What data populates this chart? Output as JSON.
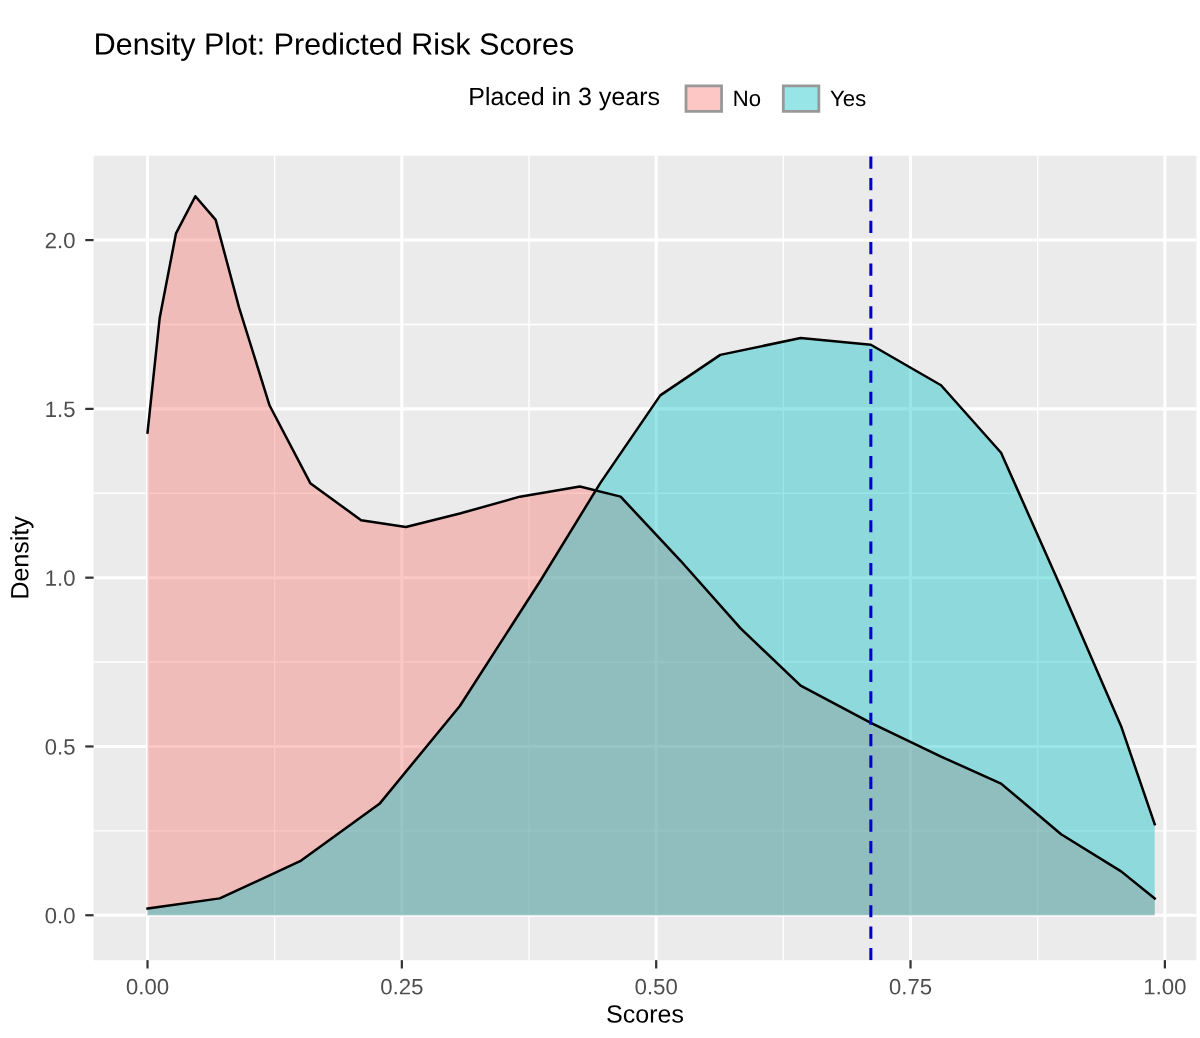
{
  "chart_data": {
    "type": "area",
    "title": "Density Plot: Predicted Risk Scores",
    "xlabel": "Scores",
    "ylabel": "Density",
    "legend_title": "Placed in 3 years",
    "legend": "top",
    "grid": true,
    "xlim": [
      -0.053,
      1.031
    ],
    "ylim": [
      -0.133,
      2.25
    ],
    "xticks": [
      {
        "value": 0,
        "label": "0.00"
      },
      {
        "value": 0.25,
        "label": "0.25"
      },
      {
        "value": 0.5,
        "label": "0.50"
      },
      {
        "value": 0.75,
        "label": "0.75"
      },
      {
        "value": 1,
        "label": "1.00"
      }
    ],
    "yticks": [
      {
        "value": 0,
        "label": "0.0"
      },
      {
        "value": 0.5,
        "label": "0.5"
      },
      {
        "value": 1,
        "label": "1.0"
      },
      {
        "value": 1.5,
        "label": "1.5"
      },
      {
        "value": 2,
        "label": "2.0"
      }
    ],
    "series": [
      {
        "name": "No",
        "color": "#f8766d",
        "x": [
          0,
          0.012,
          0.028,
          0.047,
          0.067,
          0.09,
          0.12,
          0.16,
          0.21,
          0.254,
          0.307,
          0.366,
          0.425,
          0.465,
          0.524,
          0.583,
          0.642,
          0.711,
          0.78,
          0.839,
          0.898,
          0.957,
          0.99
        ],
        "values": [
          1.43,
          1.77,
          2.02,
          2.13,
          2.06,
          1.8,
          1.51,
          1.28,
          1.17,
          1.15,
          1.19,
          1.24,
          1.27,
          1.24,
          1.05,
          0.85,
          0.68,
          0.57,
          0.47,
          0.39,
          0.24,
          0.13,
          0.05
        ]
      },
      {
        "name": "Yes",
        "color": "#00bfc4",
        "x": [
          0,
          0.071,
          0.15,
          0.228,
          0.307,
          0.386,
          0.445,
          0.504,
          0.563,
          0.642,
          0.711,
          0.78,
          0.839,
          0.898,
          0.957,
          0.99
        ],
        "values": [
          0.02,
          0.05,
          0.16,
          0.33,
          0.62,
          0.99,
          1.28,
          1.54,
          1.66,
          1.71,
          1.69,
          1.57,
          1.37,
          0.97,
          0.56,
          0.27
        ]
      }
    ],
    "ref_lines": [
      {
        "axis": "x",
        "value": 0.711,
        "color": "#0000cd",
        "line_style": "dashed"
      }
    ]
  }
}
